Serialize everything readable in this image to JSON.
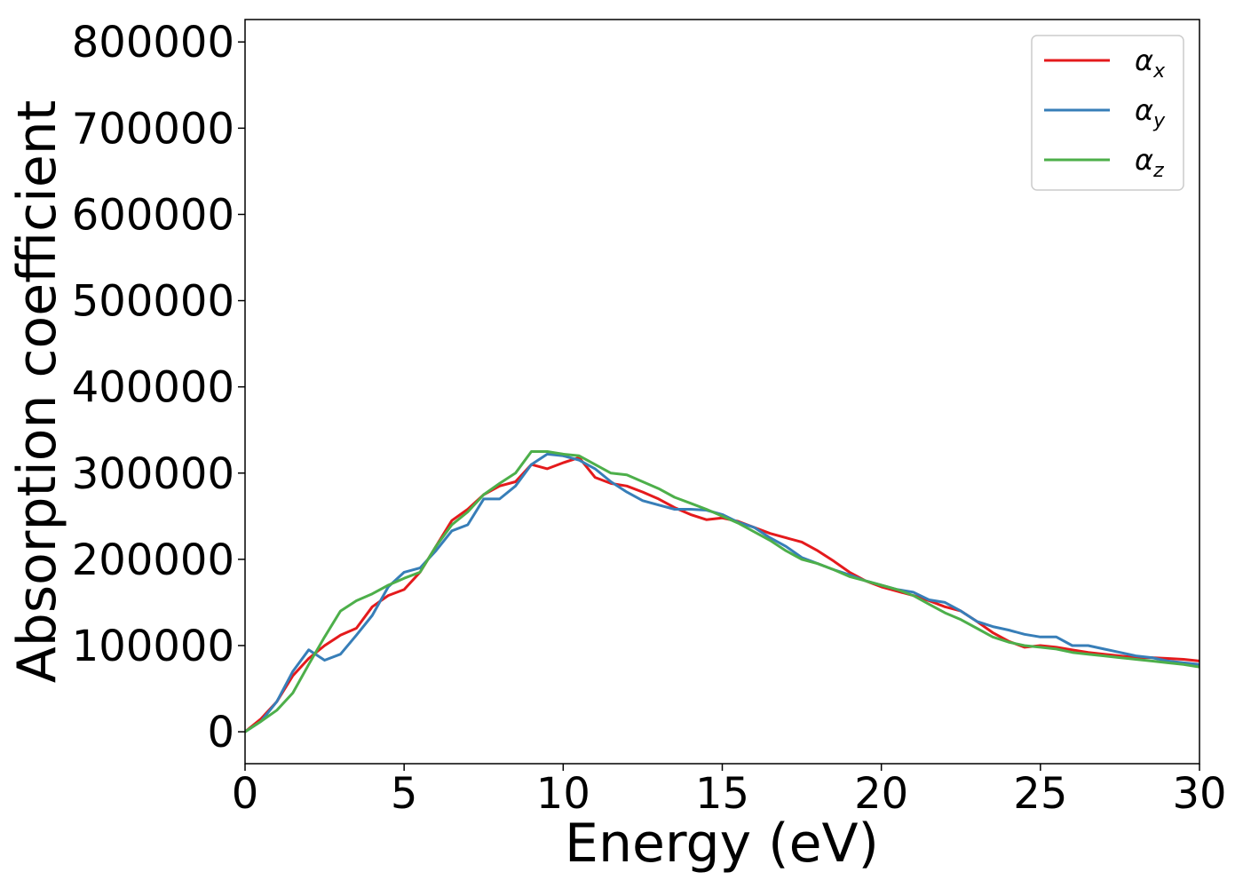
{
  "chart_data": {
    "type": "line",
    "xlabel": "Energy (eV)",
    "ylabel": "Absorption coefficient",
    "xlim": [
      0,
      30
    ],
    "ylim": [
      -37000,
      826000
    ],
    "xticks": [
      0,
      5,
      10,
      15,
      20,
      25,
      30
    ],
    "xtick_labels": [
      "0",
      "5",
      "10",
      "15",
      "20",
      "25",
      "30"
    ],
    "yticks": [
      0,
      100000,
      200000,
      300000,
      400000,
      500000,
      600000,
      700000,
      800000
    ],
    "ytick_labels": [
      "0",
      "100000",
      "200000",
      "300000",
      "400000",
      "500000",
      "600000",
      "700000",
      "800000"
    ],
    "grid": false,
    "legend_position": "top-right",
    "series": [
      {
        "name": "α",
        "subscript": "x",
        "color": "#e41a1c",
        "x": [
          0,
          0.5,
          1,
          1.5,
          2,
          2.5,
          3,
          3.5,
          4,
          4.5,
          5,
          5.5,
          6,
          6.5,
          7,
          7.5,
          8,
          8.5,
          9,
          9.5,
          10,
          10.5,
          11,
          11.5,
          12,
          12.5,
          13,
          13.5,
          14,
          14.5,
          15,
          15.5,
          16,
          16.5,
          17,
          17.5,
          18,
          18.5,
          19,
          19.5,
          20,
          20.5,
          21,
          21.5,
          22,
          22.5,
          23,
          23.5,
          24,
          24.5,
          25,
          25.5,
          26,
          26.5,
          27,
          27.5,
          28,
          28.5,
          29,
          29.5,
          30
        ],
        "y": [
          0,
          15000,
          35000,
          65000,
          85000,
          100000,
          112000,
          120000,
          145000,
          158000,
          165000,
          185000,
          215000,
          245000,
          258000,
          275000,
          285000,
          290000,
          310000,
          305000,
          312000,
          318000,
          295000,
          288000,
          285000,
          278000,
          270000,
          260000,
          252000,
          246000,
          248000,
          244000,
          237000,
          230000,
          225000,
          220000,
          210000,
          198000,
          185000,
          175000,
          168000,
          163000,
          158000,
          152000,
          145000,
          140000,
          128000,
          115000,
          105000,
          98000,
          100000,
          98000,
          95000,
          92000,
          90000,
          88000,
          86000,
          86000,
          85000,
          84000,
          82000
        ]
      },
      {
        "name": "α",
        "subscript": "y",
        "color": "#377eb8",
        "x": [
          0,
          0.5,
          1,
          1.5,
          2,
          2.5,
          3,
          3.5,
          4,
          4.5,
          5,
          5.5,
          6,
          6.5,
          7,
          7.5,
          8,
          8.5,
          9,
          9.5,
          10,
          10.5,
          11,
          11.5,
          12,
          12.5,
          13,
          13.5,
          14,
          14.5,
          15,
          15.5,
          16,
          16.5,
          17,
          17.5,
          18,
          18.5,
          19,
          19.5,
          20,
          20.5,
          21,
          21.5,
          22,
          22.5,
          23,
          23.5,
          24,
          24.5,
          25,
          25.5,
          26,
          26.5,
          27,
          27.5,
          28,
          28.5,
          29,
          29.5,
          30
        ],
        "y": [
          0,
          12000,
          35000,
          70000,
          95000,
          83000,
          90000,
          112000,
          135000,
          168000,
          185000,
          190000,
          210000,
          233000,
          240000,
          270000,
          270000,
          285000,
          310000,
          322000,
          320000,
          315000,
          305000,
          290000,
          278000,
          268000,
          263000,
          258000,
          258000,
          257000,
          252000,
          243000,
          237000,
          225000,
          215000,
          202000,
          195000,
          188000,
          182000,
          175000,
          170000,
          165000,
          162000,
          153000,
          150000,
          140000,
          128000,
          122000,
          118000,
          113000,
          110000,
          110000,
          100000,
          100000,
          96000,
          92000,
          88000,
          86000,
          82000,
          80000,
          78000
        ]
      },
      {
        "name": "α",
        "subscript": "z",
        "color": "#4daf4a",
        "x": [
          0,
          0.5,
          1,
          1.5,
          2,
          2.5,
          3,
          3.5,
          4,
          4.5,
          5,
          5.5,
          6,
          6.5,
          7,
          7.5,
          8,
          8.5,
          9,
          9.5,
          10,
          10.5,
          11,
          11.5,
          12,
          12.5,
          13,
          13.5,
          14,
          14.5,
          15,
          15.5,
          16,
          16.5,
          17,
          17.5,
          18,
          18.5,
          19,
          19.5,
          20,
          20.5,
          21,
          21.5,
          22,
          22.5,
          23,
          23.5,
          24,
          24.5,
          25,
          25.5,
          26,
          26.5,
          27,
          27.5,
          28,
          28.5,
          29,
          29.5,
          30
        ],
        "y": [
          0,
          12000,
          25000,
          45000,
          78000,
          110000,
          140000,
          152000,
          160000,
          170000,
          178000,
          185000,
          215000,
          240000,
          255000,
          275000,
          288000,
          300000,
          325000,
          325000,
          322000,
          320000,
          310000,
          300000,
          298000,
          290000,
          282000,
          272000,
          265000,
          258000,
          250000,
          242000,
          232000,
          222000,
          210000,
          200000,
          195000,
          188000,
          180000,
          175000,
          170000,
          165000,
          158000,
          148000,
          138000,
          130000,
          120000,
          110000,
          104000,
          100000,
          98000,
          96000,
          92000,
          90000,
          88000,
          86000,
          84000,
          82000,
          80000,
          78000,
          75000
        ]
      }
    ]
  }
}
